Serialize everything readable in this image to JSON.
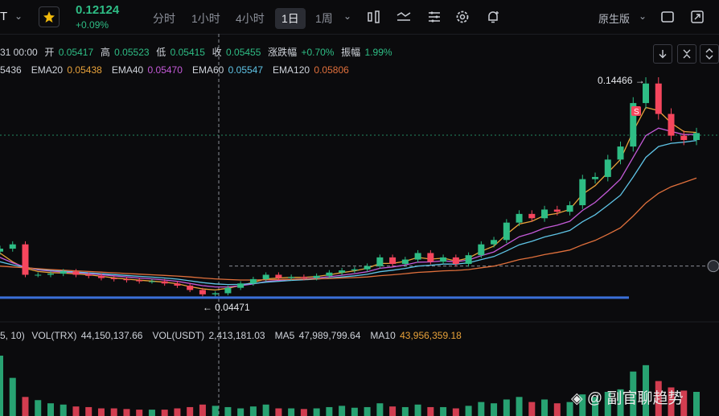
{
  "toolbar": {
    "symbol_fragment": "T",
    "price": "0.12124",
    "change": "+0.09%",
    "intervals": [
      "分时",
      "1小时",
      "4小时",
      "1日",
      "1周"
    ],
    "active_interval": "1日",
    "chart_style": "原生版"
  },
  "ohlc": {
    "date_fragment": "31 00:00",
    "open_label": "开",
    "open": "0.05417",
    "high_label": "高",
    "high": "0.05523",
    "low_label": "低",
    "low": "0.05415",
    "close_label": "收",
    "close": "0.05455",
    "chg_label": "涨跌幅",
    "chg": "+0.70%",
    "amp_label": "振幅",
    "amp": "1.99%"
  },
  "ema": {
    "first_fragment": "5436",
    "items": [
      {
        "label": "EMA20",
        "value": "0.05438",
        "color": "#e8a23a"
      },
      {
        "label": "EMA40",
        "value": "0.05470",
        "color": "#c45ad8"
      },
      {
        "label": "EMA60",
        "value": "0.05547",
        "color": "#5fc4e6"
      },
      {
        "label": "EMA120",
        "value": "0.05806",
        "color": "#e0703c"
      }
    ]
  },
  "volume": {
    "params_fragment": "5, 10)",
    "vol_trx_label": "VOL(TRX)",
    "vol_trx": "44,150,137.66",
    "vol_usdt_label": "VOL(USDT)",
    "vol_usdt": "2,413,181.03",
    "ma5_label": "MA5",
    "ma5": "47,989,799.64",
    "ma10_label": "MA10",
    "ma10": "43,956,359.18"
  },
  "annotations": {
    "high_marker": "0.14466",
    "low_marker": "0.04471",
    "badge": "S"
  },
  "watermark": "◈ @ 副官聊趋势",
  "colors": {
    "up": "#2ebd85",
    "down": "#f6465d",
    "support_line": "#3b6fd8"
  },
  "chart_data": {
    "type": "line",
    "title": "",
    "series": [
      {
        "name": "",
        "values": [
          0.068,
          0.07,
          0.056,
          0.056,
          0.0565,
          0.0575,
          0.056,
          0.0555,
          0.0545,
          0.054,
          0.0535,
          0.053,
          0.053,
          0.052,
          0.051,
          0.049,
          0.047,
          0.0475,
          0.05,
          0.052,
          0.054,
          0.056,
          0.0545,
          0.055,
          0.0545,
          0.0555,
          0.057,
          0.058,
          0.0585,
          0.06,
          0.064,
          0.061,
          0.063,
          0.066,
          0.062,
          0.064,
          0.061,
          0.065,
          0.07,
          0.072,
          0.08,
          0.084,
          0.082,
          0.086,
          0.085,
          0.088,
          0.1,
          0.101,
          0.109,
          0.115,
          0.135,
          0.144,
          0.13,
          0.12,
          0.118,
          0.1212
        ]
      },
      {
        "name": "EMA20",
        "values": [
          0.066,
          0.062,
          0.059,
          0.0575,
          0.057,
          0.0568,
          0.0564,
          0.056,
          0.0553,
          0.0546,
          0.054,
          0.0535,
          0.0531,
          0.0526,
          0.0519,
          0.0505,
          0.0495,
          0.049,
          0.0498,
          0.0511,
          0.0525,
          0.0541,
          0.0545,
          0.0548,
          0.0548,
          0.0552,
          0.056,
          0.057,
          0.0578,
          0.059,
          0.0612,
          0.0612,
          0.0622,
          0.064,
          0.0632,
          0.0636,
          0.0624,
          0.0637,
          0.0668,
          0.0692,
          0.0746,
          0.0793,
          0.0806,
          0.0833,
          0.0842,
          0.0861,
          0.093,
          0.097,
          0.103,
          0.109,
          0.122,
          0.133,
          0.1315,
          0.1258,
          0.1219,
          0.1215
        ]
      },
      {
        "name": "EMA40",
        "values": [
          0.064,
          0.0615,
          0.0595,
          0.0583,
          0.0577,
          0.0573,
          0.0569,
          0.0565,
          0.056,
          0.0555,
          0.055,
          0.0545,
          0.0541,
          0.0536,
          0.053,
          0.052,
          0.051,
          0.0504,
          0.0504,
          0.051,
          0.0518,
          0.0529,
          0.0534,
          0.0539,
          0.0541,
          0.0545,
          0.0551,
          0.0558,
          0.0565,
          0.0574,
          0.059,
          0.0596,
          0.0605,
          0.0618,
          0.0619,
          0.0624,
          0.062,
          0.0628,
          0.0648,
          0.0665,
          0.07,
          0.0735,
          0.0752,
          0.0775,
          0.0788,
          0.0806,
          0.0856,
          0.0893,
          0.0945,
          0.1,
          0.11,
          0.12,
          0.1235,
          0.122,
          0.1205,
          0.1206
        ]
      },
      {
        "name": "EMA60",
        "values": [
          0.062,
          0.0605,
          0.0594,
          0.0586,
          0.0581,
          0.0577,
          0.0573,
          0.0569,
          0.0565,
          0.0561,
          0.0557,
          0.0553,
          0.0549,
          0.0545,
          0.054,
          0.0532,
          0.0524,
          0.0518,
          0.0515,
          0.0516,
          0.052,
          0.0526,
          0.053,
          0.0534,
          0.0537,
          0.054,
          0.0545,
          0.055,
          0.0555,
          0.0562,
          0.0574,
          0.0581,
          0.0589,
          0.06,
          0.0604,
          0.0609,
          0.0609,
          0.0615,
          0.063,
          0.0644,
          0.067,
          0.0698,
          0.0714,
          0.0734,
          0.0748,
          0.0764,
          0.0804,
          0.0836,
          0.088,
          0.0926,
          0.101,
          0.11,
          0.115,
          0.1165,
          0.117,
          0.1178
        ]
      },
      {
        "name": "EMA120",
        "values": [
          0.06,
          0.0596,
          0.0592,
          0.0588,
          0.0584,
          0.0581,
          0.0578,
          0.0575,
          0.0572,
          0.0569,
          0.0566,
          0.0563,
          0.056,
          0.0557,
          0.0554,
          0.055,
          0.0545,
          0.0541,
          0.0538,
          0.0536,
          0.0536,
          0.0537,
          0.0538,
          0.0539,
          0.054,
          0.0541,
          0.0543,
          0.0545,
          0.0547,
          0.055,
          0.0556,
          0.056,
          0.0565,
          0.0571,
          0.0574,
          0.0578,
          0.058,
          0.0584,
          0.0592,
          0.06,
          0.0614,
          0.063,
          0.064,
          0.0653,
          0.0663,
          0.0674,
          0.0698,
          0.0718,
          0.0746,
          0.0776,
          0.083,
          0.089,
          0.0935,
          0.0965,
          0.0985,
          0.1005
        ]
      }
    ],
    "volume_values": [
      95,
      60,
      30,
      25,
      20,
      18,
      15,
      14,
      12,
      12,
      11,
      10,
      10,
      10,
      12,
      14,
      18,
      16,
      14,
      12,
      15,
      18,
      12,
      12,
      11,
      12,
      14,
      16,
      13,
      14,
      20,
      15,
      14,
      18,
      14,
      14,
      12,
      16,
      22,
      20,
      26,
      30,
      22,
      26,
      20,
      22,
      34,
      30,
      38,
      42,
      70,
      80,
      55,
      45,
      40,
      38
    ],
    "annotation_values": {
      "high": 0.14466,
      "low": 0.04471,
      "support": 0.0455,
      "crosshair": 0.06
    }
  }
}
